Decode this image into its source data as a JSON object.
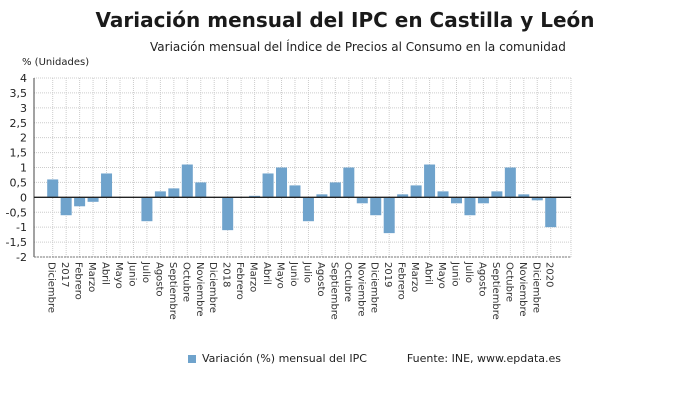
{
  "chart_data": {
    "type": "bar",
    "title": "Variación mensual del IPC en Castilla y León",
    "subtitle": "Variación mensual del Índice de Precios al Consumo en la comunidad",
    "ylabel": "% (Unidades)",
    "ylim": [
      -2,
      4
    ],
    "yticks": [
      "4",
      "3,5",
      "3",
      "2,5",
      "2",
      "1,5",
      "1",
      "0,5",
      "0",
      "-0,5",
      "-1",
      "-1,5",
      "-2"
    ],
    "grid": true,
    "categories": [
      "Diciembre",
      "2017",
      "Febrero",
      "Marzo",
      "Abril",
      "Mayo",
      "Junio",
      "Julio",
      "Agosto",
      "Septiembre",
      "Octubre",
      "Noviembre",
      "Diciembre",
      "2018",
      "Febrero",
      "Marzo",
      "Abril",
      "Mayo",
      "Junio",
      "Julio",
      "Agosto",
      "Septiembre",
      "Octubre",
      "Noviembre",
      "Diciembre",
      "2019",
      "Febrero",
      "Marzo",
      "Abril",
      "Mayo",
      "Junio",
      "Julio",
      "Agosto",
      "Septiembre",
      "Octubre",
      "Noviembre",
      "Diciembre",
      "2020"
    ],
    "series": [
      {
        "name": "Variación (%) mensual del IPC",
        "color": "#6fa3cc",
        "values": [
          0.6,
          -0.6,
          -0.3,
          -0.15,
          0.8,
          0,
          0,
          -0.8,
          0.2,
          0.3,
          1.1,
          0.5,
          0,
          -1.1,
          0,
          0.05,
          0.8,
          1.0,
          0.4,
          -0.8,
          0.1,
          0.5,
          1.0,
          -0.2,
          -0.6,
          -1.2,
          0.1,
          0.4,
          1.1,
          0.2,
          -0.2,
          -0.6,
          -0.2,
          0.2,
          1.0,
          0.1,
          -0.1,
          -1.0
        ]
      }
    ],
    "legend": "bottom",
    "source": "Fuente: INE, www.epdata.es"
  }
}
